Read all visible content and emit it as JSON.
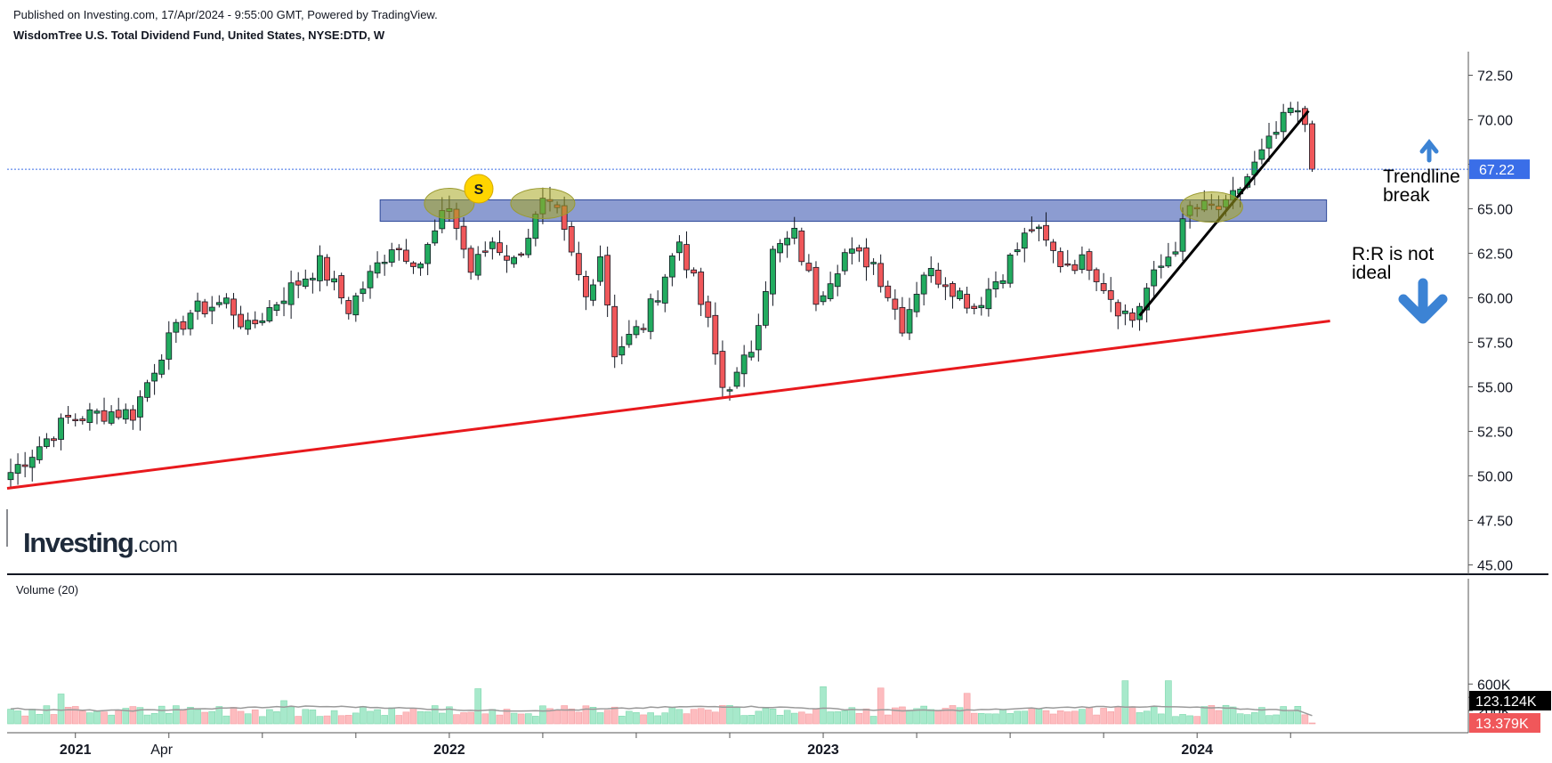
{
  "header": {
    "published_line": "Published on Investing.com, 17/Apr/2024 - 9:55:00 GMT, Powered by TradingView.",
    "symbol_line": "WisdomTree U.S. Total Dividend Fund, United States, NYSE:DTD, W"
  },
  "logo": {
    "main": "Investing",
    "suffix": ".com"
  },
  "volume": {
    "title": "Volume (20)"
  },
  "annotations": {
    "signal_marker": "S",
    "trendline_line1": "Trendline",
    "trendline_line2": "break",
    "rr_line1": "R:R is not",
    "rr_line2": "ideal"
  },
  "colors": {
    "up": "#22ab5f",
    "down": "#f0575a",
    "up_volume": "#a7e9cb",
    "down_volume": "#fdbcbf",
    "resistance_zone": "#7f91cc",
    "support_line": "#e8191d",
    "trendline": "#000000",
    "price_label": "#3a6ee8",
    "signal_marker": "#ffd500",
    "arrow": "#3c83d4",
    "volume_ma": "#9a9a9a"
  },
  "chart_data": {
    "type": "candlestick",
    "interval": "W",
    "price_axis": {
      "min": 45.0,
      "max": 72.5,
      "ticks": [
        "72.50",
        "70.00",
        "67.50",
        "65.00",
        "62.50",
        "60.00",
        "57.50",
        "55.00",
        "52.50",
        "50.00",
        "47.50",
        "45.00"
      ]
    },
    "volume_axis": {
      "ticks": [
        "600K",
        "400K",
        "200K"
      ]
    },
    "x_axis_labels": [
      {
        "label": "2021",
        "bold": true,
        "week": 9
      },
      {
        "label": "Apr",
        "bold": false,
        "week": 21
      },
      {
        "label": "2022",
        "bold": true,
        "week": 61
      },
      {
        "label": "2023",
        "bold": true,
        "week": 113
      },
      {
        "label": "2024",
        "bold": true,
        "week": 165
      }
    ],
    "last_price": {
      "value": 67.22,
      "label": "67.22"
    },
    "last_volume_labels": [
      {
        "label": "123.124K",
        "value": 123124,
        "style": "ma"
      },
      {
        "label": "13.379K",
        "value": 13379,
        "style": "volume"
      }
    ],
    "resistance_zone": {
      "low": 64.3,
      "high": 65.5,
      "start_week": 52,
      "end_week": 183
    },
    "support_line": {
      "start": {
        "week": 0,
        "price": 49.3
      },
      "end": {
        "week": 183,
        "price": 58.7
      }
    },
    "trendline": {
      "start": {
        "week": 157,
        "price": 59.0
      },
      "end": {
        "week": 180,
        "price": 70.5
      }
    },
    "anchors": [
      {
        "week": 0,
        "price": 50.2
      },
      {
        "week": 8,
        "price": 53.2
      },
      {
        "week": 14,
        "price": 53.6
      },
      {
        "week": 17,
        "price": 53.5
      },
      {
        "week": 21,
        "price": 57.0
      },
      {
        "week": 25,
        "price": 59.2
      },
      {
        "week": 30,
        "price": 59.8
      },
      {
        "week": 33,
        "price": 58.2
      },
      {
        "week": 38,
        "price": 60.2
      },
      {
        "week": 43,
        "price": 61.9
      },
      {
        "week": 47,
        "price": 59.4
      },
      {
        "week": 53,
        "price": 63.0
      },
      {
        "week": 57,
        "price": 62.0
      },
      {
        "week": 61,
        "price": 65.2
      },
      {
        "week": 64,
        "price": 61.5
      },
      {
        "week": 67,
        "price": 63.2
      },
      {
        "week": 70,
        "price": 62.0
      },
      {
        "week": 74,
        "price": 65.2
      },
      {
        "week": 76,
        "price": 64.6
      },
      {
        "week": 80,
        "price": 60.0
      },
      {
        "week": 82,
        "price": 62.5
      },
      {
        "week": 84,
        "price": 57.0
      },
      {
        "week": 88,
        "price": 58.5
      },
      {
        "week": 93,
        "price": 63.2
      },
      {
        "week": 97,
        "price": 58.5
      },
      {
        "week": 99,
        "price": 55.0
      },
      {
        "week": 101,
        "price": 55.5
      },
      {
        "week": 103,
        "price": 57.2
      },
      {
        "week": 106,
        "price": 62.5
      },
      {
        "week": 109,
        "price": 63.5
      },
      {
        "week": 112,
        "price": 60.0
      },
      {
        "week": 116,
        "price": 62.5
      },
      {
        "week": 120,
        "price": 62.0
      },
      {
        "week": 124,
        "price": 58.5
      },
      {
        "week": 127,
        "price": 61.5
      },
      {
        "week": 130,
        "price": 61.0
      },
      {
        "week": 134,
        "price": 59.5
      },
      {
        "week": 138,
        "price": 61.5
      },
      {
        "week": 142,
        "price": 64.0
      },
      {
        "week": 146,
        "price": 62.0
      },
      {
        "week": 150,
        "price": 62.0
      },
      {
        "week": 154,
        "price": 59.5
      },
      {
        "week": 156,
        "price": 58.8
      },
      {
        "week": 158,
        "price": 60.5
      },
      {
        "week": 162,
        "price": 63.0
      },
      {
        "week": 164,
        "price": 65.0
      },
      {
        "week": 169,
        "price": 65.0
      },
      {
        "week": 174,
        "price": 68.0
      },
      {
        "week": 178,
        "price": 70.5
      },
      {
        "week": 180,
        "price": 69.8
      },
      {
        "week": 181,
        "price": 67.2
      }
    ],
    "volume_spikes": [
      {
        "week": 7,
        "value": 450000
      },
      {
        "week": 38,
        "value": 350000
      },
      {
        "week": 65,
        "value": 530000
      },
      {
        "week": 113,
        "value": 560000
      },
      {
        "week": 121,
        "value": 540000
      },
      {
        "week": 133,
        "value": 460000
      },
      {
        "week": 155,
        "value": 650000
      },
      {
        "week": 161,
        "value": 650000
      }
    ],
    "total_weeks": 182
  }
}
